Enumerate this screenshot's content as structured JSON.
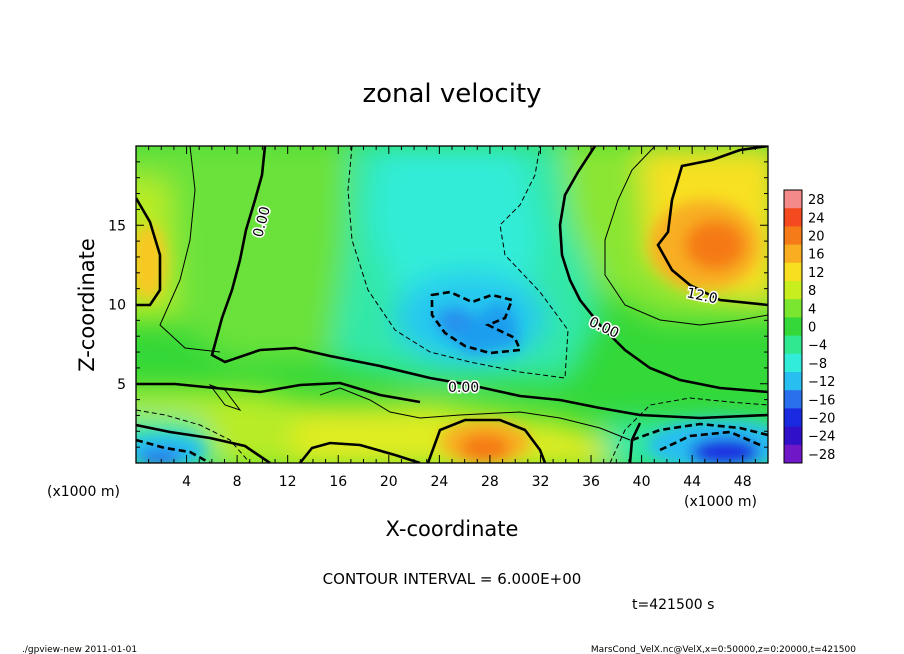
{
  "chart_data": {
    "type": "heatmap",
    "title": "zonal velocity",
    "xlabel": "X-coordinate",
    "ylabel": "Z-coordinate",
    "x_unit_left": "(x1000 m)",
    "x_unit_right": "(x1000 m)",
    "xlim": [
      0,
      50
    ],
    "ylim": [
      0,
      20
    ],
    "x_ticks": [
      4,
      8,
      12,
      16,
      20,
      24,
      28,
      32,
      36,
      40,
      44,
      48
    ],
    "y_ticks": [
      5,
      10,
      15
    ],
    "contour_interval_text": "CONTOUR INTERVAL = 6.000E+00",
    "time_text": "t=421500 s",
    "contour_labels": [
      "0.00",
      "0.00",
      "0.00",
      "12.0"
    ],
    "colorbar": {
      "levels": [
        28,
        24,
        20,
        16,
        12,
        8,
        4,
        0,
        -4,
        -8,
        -12,
        -16,
        -20,
        -24,
        -28
      ],
      "colors": [
        "#f58a8a",
        "#f54a20",
        "#f57a18",
        "#f8ae20",
        "#f8e020",
        "#c8ee20",
        "#7ae630",
        "#34d838",
        "#30e890",
        "#30ecd8",
        "#28bef0",
        "#2a70ec",
        "#1a2ae0",
        "#3010c8",
        "#7018c8"
      ]
    },
    "regions": [
      {
        "label": "negative core",
        "x": 26,
        "z": 8,
        "value": -13
      },
      {
        "label": "positive core",
        "x": 46,
        "z": 13,
        "value": 15
      },
      {
        "label": "positive core",
        "x": 1,
        "z": 12,
        "value": 12
      },
      {
        "label": "positive near bottom",
        "x": 28,
        "z": 1.5,
        "value": 14
      },
      {
        "label": "negative near bottom",
        "x": 47,
        "z": 1.0,
        "value": -18
      },
      {
        "label": "negative near bottom",
        "x": 2,
        "z": 0.8,
        "value": -12
      }
    ]
  },
  "footer": {
    "left": "./gpview-new  2011-01-01",
    "right": "MarsCond_VelX.nc@VelX,x=0:50000,z=0:20000,t=421500"
  }
}
